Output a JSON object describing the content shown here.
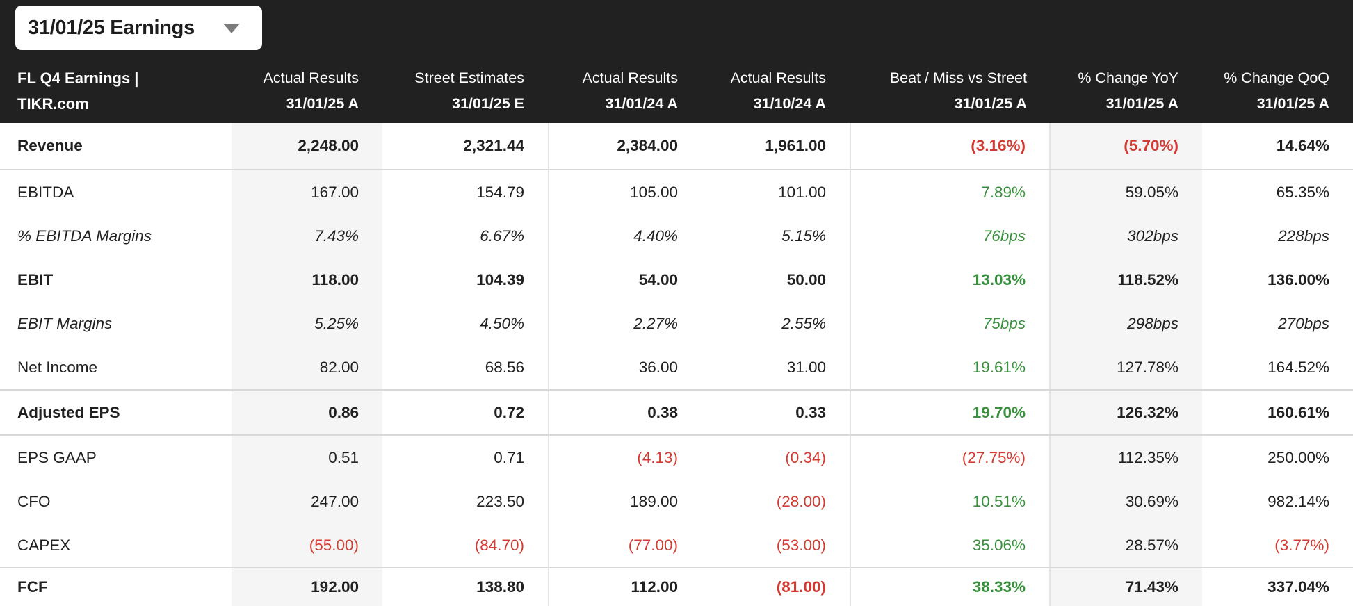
{
  "colors": {
    "header_bg": "#212121",
    "stripe": "#f5f5f5",
    "positive": "#39903d",
    "negative": "#d33b32",
    "text": "#212121"
  },
  "period_selector": {
    "value": "31/01/25 Earnings",
    "chevron_icon": "chevron-down"
  },
  "table": {
    "title_line1": "FL Q4 Earnings |",
    "title_line2": "TIKR.com",
    "columns": [
      {
        "label": "Actual Results",
        "date": "31/01/25 A"
      },
      {
        "label": "Street Estimates",
        "date": "31/01/25 E"
      },
      {
        "label": "Actual Results",
        "date": "31/01/24 A"
      },
      {
        "label": "Actual Results",
        "date": "31/10/24 A"
      },
      {
        "label": "Beat / Miss vs Street",
        "date": "31/01/25 A"
      },
      {
        "label": "% Change YoY",
        "date": "31/01/25 A"
      },
      {
        "label": "% Change QoQ",
        "date": "31/01/25 A"
      }
    ],
    "rows": [
      {
        "label": "Revenue",
        "emphasis": "bold",
        "cells": [
          {
            "text": "2,248.00"
          },
          {
            "text": "2,321.44"
          },
          {
            "text": "2,384.00"
          },
          {
            "text": "1,961.00"
          },
          {
            "text": "(3.16%)",
            "color": "negative"
          },
          {
            "text": "(5.70%)",
            "color": "negative"
          },
          {
            "text": "14.64%"
          }
        ]
      },
      {
        "label": "EBITDA",
        "emphasis": "normal",
        "cells": [
          {
            "text": "167.00"
          },
          {
            "text": "154.79"
          },
          {
            "text": "105.00"
          },
          {
            "text": "101.00"
          },
          {
            "text": "7.89%",
            "color": "positive"
          },
          {
            "text": "59.05%"
          },
          {
            "text": "65.35%"
          }
        ]
      },
      {
        "label": "% EBITDA Margins",
        "emphasis": "italic",
        "cells": [
          {
            "text": "7.43%"
          },
          {
            "text": "6.67%"
          },
          {
            "text": "4.40%"
          },
          {
            "text": "5.15%"
          },
          {
            "text": "76bps",
            "color": "positive"
          },
          {
            "text": "302bps"
          },
          {
            "text": "228bps"
          }
        ]
      },
      {
        "label": "EBIT",
        "emphasis": "bold",
        "cells": [
          {
            "text": "118.00"
          },
          {
            "text": "104.39"
          },
          {
            "text": "54.00"
          },
          {
            "text": "50.00"
          },
          {
            "text": "13.03%",
            "color": "positive"
          },
          {
            "text": "118.52%"
          },
          {
            "text": "136.00%"
          }
        ]
      },
      {
        "label": "EBIT Margins",
        "emphasis": "italic",
        "cells": [
          {
            "text": "5.25%"
          },
          {
            "text": "4.50%"
          },
          {
            "text": "2.27%"
          },
          {
            "text": "2.55%"
          },
          {
            "text": "75bps",
            "color": "positive"
          },
          {
            "text": "298bps"
          },
          {
            "text": "270bps"
          }
        ]
      },
      {
        "label": "Net Income",
        "emphasis": "normal",
        "cells": [
          {
            "text": "82.00"
          },
          {
            "text": "68.56"
          },
          {
            "text": "36.00"
          },
          {
            "text": "31.00"
          },
          {
            "text": "19.61%",
            "color": "positive"
          },
          {
            "text": "127.78%"
          },
          {
            "text": "164.52%"
          }
        ]
      },
      {
        "label": "Adjusted EPS",
        "emphasis": "bold",
        "cells": [
          {
            "text": "0.86"
          },
          {
            "text": "0.72"
          },
          {
            "text": "0.38"
          },
          {
            "text": "0.33"
          },
          {
            "text": "19.70%",
            "color": "positive"
          },
          {
            "text": "126.32%"
          },
          {
            "text": "160.61%"
          }
        ]
      },
      {
        "label": "EPS GAAP",
        "emphasis": "normal",
        "cells": [
          {
            "text": "0.51"
          },
          {
            "text": "0.71"
          },
          {
            "text": "(4.13)",
            "color": "negative"
          },
          {
            "text": "(0.34)",
            "color": "negative"
          },
          {
            "text": "(27.75%)",
            "color": "negative"
          },
          {
            "text": "112.35%"
          },
          {
            "text": "250.00%"
          }
        ]
      },
      {
        "label": "CFO",
        "emphasis": "normal",
        "cells": [
          {
            "text": "247.00"
          },
          {
            "text": "223.50"
          },
          {
            "text": "189.00"
          },
          {
            "text": "(28.00)",
            "color": "negative"
          },
          {
            "text": "10.51%",
            "color": "positive"
          },
          {
            "text": "30.69%"
          },
          {
            "text": "982.14%"
          }
        ]
      },
      {
        "label": "CAPEX",
        "emphasis": "normal",
        "cells": [
          {
            "text": "(55.00)",
            "color": "negative"
          },
          {
            "text": "(84.70)",
            "color": "negative"
          },
          {
            "text": "(77.00)",
            "color": "negative"
          },
          {
            "text": "(53.00)",
            "color": "negative"
          },
          {
            "text": "35.06%",
            "color": "positive"
          },
          {
            "text": "28.57%"
          },
          {
            "text": "(3.77%)",
            "color": "negative"
          }
        ]
      },
      {
        "label": "FCF",
        "emphasis": "bold",
        "cells": [
          {
            "text": "192.00"
          },
          {
            "text": "138.80"
          },
          {
            "text": "112.00"
          },
          {
            "text": "(81.00)",
            "color": "negative"
          },
          {
            "text": "38.33%",
            "color": "positive"
          },
          {
            "text": "71.43%"
          },
          {
            "text": "337.04%"
          }
        ]
      }
    ]
  }
}
